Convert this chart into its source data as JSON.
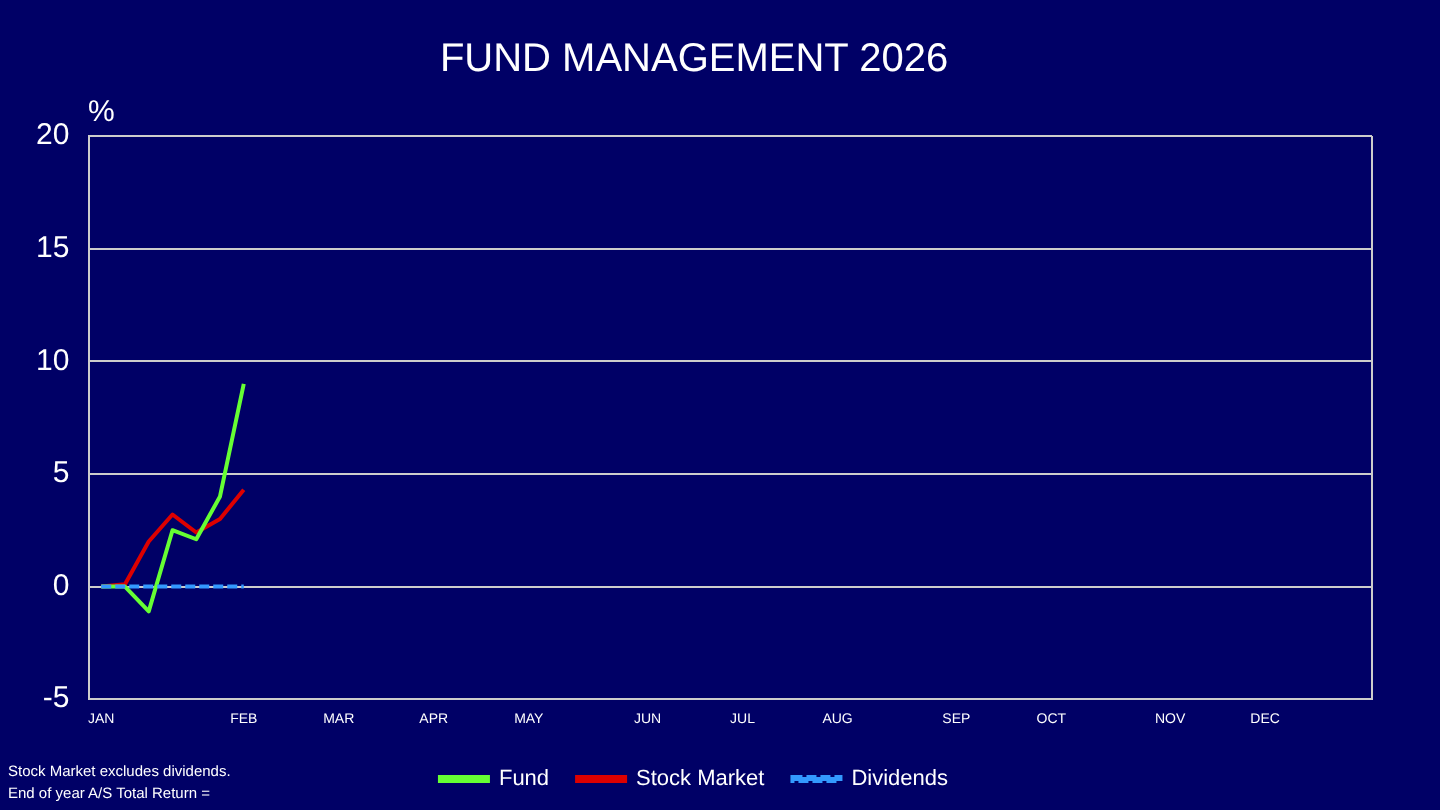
{
  "chart_data": {
    "type": "line",
    "title": "FUND MANAGEMENT 2026",
    "ylabel": "%",
    "categories": [
      "JAN",
      null,
      null,
      null,
      null,
      null,
      "FEB",
      null,
      null,
      null,
      "MAR",
      null,
      null,
      null,
      "APR",
      null,
      null,
      null,
      "MAY",
      null,
      null,
      null,
      null,
      "JUN",
      null,
      null,
      null,
      "JUL",
      null,
      null,
      null,
      "AUG",
      null,
      null,
      null,
      null,
      "SEP",
      null,
      null,
      null,
      "OCT",
      null,
      null,
      null,
      null,
      "NOV",
      null,
      null,
      null,
      "DEC",
      null,
      null,
      null,
      null
    ],
    "series": [
      {
        "name": "Fund",
        "color": "#66ff33",
        "line_style": "solid",
        "values": [
          0,
          0,
          -1.1,
          2.5,
          2.1,
          4.0,
          9.0,
          null,
          null,
          null,
          null,
          null,
          null,
          null,
          null,
          null,
          null,
          null,
          null,
          null,
          null,
          null,
          null,
          null,
          null,
          null,
          null,
          null,
          null,
          null,
          null,
          null,
          null,
          null,
          null,
          null,
          null,
          null,
          null,
          null,
          null,
          null,
          null,
          null,
          null,
          null,
          null,
          null,
          null,
          null,
          null,
          null,
          null,
          null
        ]
      },
      {
        "name": "Stock Market",
        "color": "#dd0000",
        "line_style": "solid",
        "values": [
          0,
          0.1,
          2.0,
          3.2,
          2.4,
          3.0,
          4.3,
          null,
          null,
          null,
          null,
          null,
          null,
          null,
          null,
          null,
          null,
          null,
          null,
          null,
          null,
          null,
          null,
          null,
          null,
          null,
          null,
          null,
          null,
          null,
          null,
          null,
          null,
          null,
          null,
          null,
          null,
          null,
          null,
          null,
          null,
          null,
          null,
          null,
          null,
          null,
          null,
          null,
          null,
          null,
          null,
          null,
          null,
          null
        ]
      },
      {
        "name": "Dividends",
        "color": "#3399ff",
        "line_style": "dashed",
        "values": [
          0,
          0,
          0,
          0,
          0,
          0,
          0,
          null,
          null,
          null,
          null,
          null,
          null,
          null,
          null,
          null,
          null,
          null,
          null,
          null,
          null,
          null,
          null,
          null,
          null,
          null,
          null,
          null,
          null,
          null,
          null,
          null,
          null,
          null,
          null,
          null,
          null,
          null,
          null,
          null,
          null,
          null,
          null,
          null,
          null,
          null,
          null,
          null,
          null,
          null,
          null,
          null,
          null,
          null
        ]
      }
    ],
    "ylim": [
      -5,
      20
    ],
    "yticks": [
      -5,
      0,
      5,
      10,
      15,
      20
    ],
    "grid": "y",
    "legend": "bottom",
    "marker": "none",
    "annotations": [
      "Stock Market excludes dividends.",
      "End of year A/S Total Return ="
    ]
  }
}
